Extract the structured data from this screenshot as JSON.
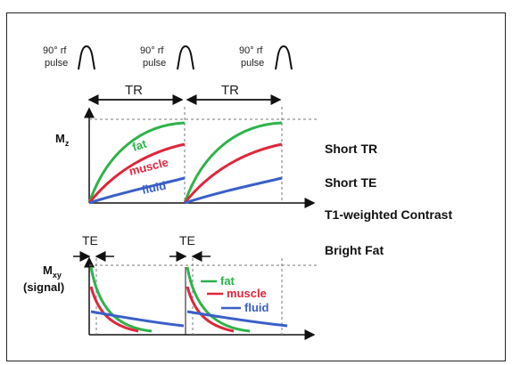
{
  "pulses": [
    {
      "line1": "90° rf",
      "line2": "pulse"
    },
    {
      "line1": "90° rf",
      "line2": "pulse"
    },
    {
      "line1": "90° rf",
      "line2": "pulse"
    }
  ],
  "tr_labels": [
    "TR",
    "TR"
  ],
  "te_labels": [
    "TE",
    "TE"
  ],
  "mz_label": "M",
  "mz_sub": "z",
  "mxy_label": "M",
  "mxy_sub": "xy",
  "signal_label": "(signal)",
  "top_curves": {
    "fat": {
      "label": "fat",
      "color": "#2db34a"
    },
    "muscle": {
      "label": "muscle",
      "color": "#e0263c"
    },
    "fluid": {
      "label": "fluid",
      "color": "#3a5fc8"
    }
  },
  "bottom_curves": {
    "fat": {
      "label": "fat",
      "color": "#2db34a"
    },
    "muscle": {
      "label": "muscle",
      "color": "#e0263c"
    },
    "fluid": {
      "label": "fluid",
      "color": "#3a5fc8"
    }
  },
  "side_labels": {
    "short_tr": "Short TR",
    "short_te": "Short TE",
    "contrast": "T1-weighted Contrast",
    "bright": "Bright Fat"
  }
}
